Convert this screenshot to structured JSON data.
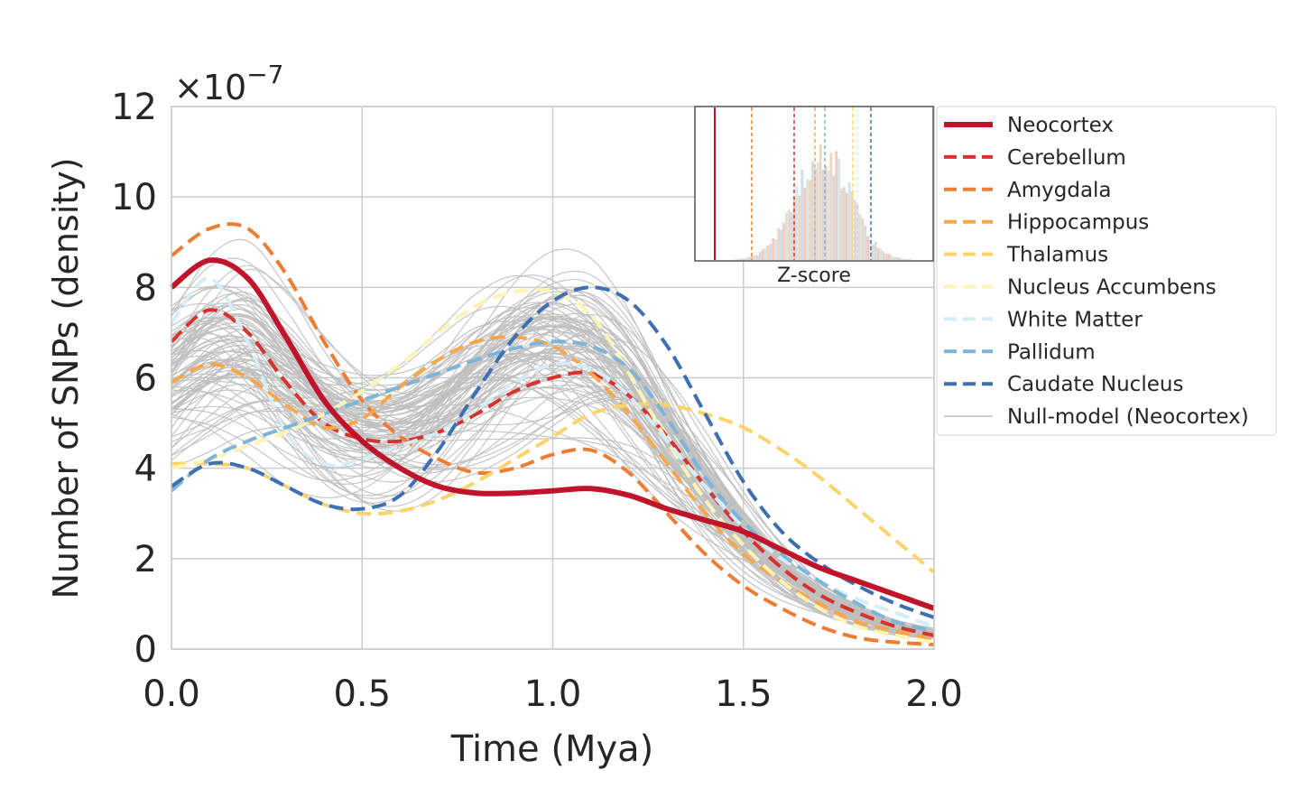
{
  "chart_data": {
    "type": "line",
    "xlabel": "Time (Mya)",
    "ylabel": "Number of SNPs (density)",
    "offset_label": "×10",
    "offset_exponent": "−7",
    "xlim": [
      0.0,
      2.0
    ],
    "ylim": [
      0,
      12
    ],
    "x_ticks": [
      0.0,
      0.5,
      1.0,
      1.5,
      2.0
    ],
    "x_tick_labels": [
      "0.0",
      "0.5",
      "1.0",
      "1.5",
      "2.0"
    ],
    "y_ticks": [
      0,
      2,
      4,
      6,
      8,
      10,
      12
    ],
    "y_tick_labels": [
      "0",
      "2",
      "4",
      "6",
      "8",
      "10",
      "12"
    ],
    "grid": true,
    "legend_position": "outside-right",
    "x": [
      0.0,
      0.1,
      0.2,
      0.3,
      0.4,
      0.5,
      0.6,
      0.7,
      0.8,
      0.9,
      1.0,
      1.1,
      1.2,
      1.3,
      1.4,
      1.5,
      1.6,
      1.7,
      1.8,
      1.9,
      2.0
    ],
    "series": [
      {
        "name": "Neocortex",
        "color": "#c0142b",
        "style": "solid",
        "width": 6,
        "values": [
          8.0,
          8.6,
          8.2,
          6.9,
          5.5,
          4.6,
          4.0,
          3.6,
          3.45,
          3.45,
          3.5,
          3.55,
          3.4,
          3.1,
          2.85,
          2.6,
          2.2,
          1.8,
          1.5,
          1.2,
          0.9
        ]
      },
      {
        "name": "Cerebellum",
        "color": "#d7322d",
        "style": "dashed",
        "width": 4,
        "values": [
          6.8,
          7.5,
          7.0,
          5.9,
          5.0,
          4.65,
          4.6,
          4.8,
          5.2,
          5.7,
          6.0,
          6.1,
          5.6,
          4.7,
          3.6,
          2.6,
          1.8,
          1.2,
          0.8,
          0.5,
          0.3
        ]
      },
      {
        "name": "Amygdala",
        "color": "#ee7d33",
        "style": "dashed",
        "width": 4,
        "values": [
          8.7,
          9.3,
          9.3,
          8.3,
          6.8,
          5.5,
          4.7,
          4.2,
          3.9,
          4.0,
          4.3,
          4.4,
          3.9,
          3.0,
          2.1,
          1.4,
          0.9,
          0.5,
          0.25,
          0.15,
          0.1
        ]
      },
      {
        "name": "Hippocampus",
        "color": "#f8a84a",
        "style": "dashed",
        "width": 4,
        "values": [
          5.9,
          6.3,
          6.0,
          5.4,
          4.9,
          5.1,
          5.8,
          6.4,
          6.8,
          6.9,
          6.7,
          6.1,
          5.2,
          4.1,
          3.0,
          2.1,
          1.5,
          1.0,
          0.6,
          0.4,
          0.2
        ]
      },
      {
        "name": "Thalamus",
        "color": "#fdd36b",
        "style": "dashed",
        "width": 4,
        "values": [
          4.1,
          4.1,
          4.0,
          3.6,
          3.2,
          3.0,
          3.05,
          3.3,
          3.7,
          4.2,
          4.7,
          5.2,
          5.4,
          5.4,
          5.2,
          4.9,
          4.4,
          3.8,
          3.1,
          2.4,
          1.7
        ]
      },
      {
        "name": "Nucleus Accumbens",
        "color": "#fdf4b5",
        "style": "dashed",
        "width": 4,
        "values": [
          4.0,
          4.2,
          4.5,
          4.8,
          5.2,
          5.7,
          6.3,
          7.0,
          7.6,
          7.9,
          7.9,
          7.4,
          6.1,
          4.6,
          3.3,
          2.3,
          1.5,
          0.9,
          0.5,
          0.3,
          0.15
        ]
      },
      {
        "name": "White Matter",
        "color": "#d7edf6",
        "style": "dashed",
        "width": 4,
        "values": [
          7.2,
          8.2,
          6.8,
          4.8,
          4.1,
          4.2,
          4.5,
          4.8,
          5.3,
          5.9,
          6.3,
          6.2,
          5.6,
          4.6,
          3.6,
          2.7,
          2.0,
          1.5,
          1.1,
          0.8,
          0.5
        ]
      },
      {
        "name": "Pallidum",
        "color": "#7eb4d8",
        "style": "dashed",
        "width": 4,
        "values": [
          3.5,
          4.2,
          4.6,
          4.9,
          5.2,
          5.5,
          5.8,
          6.1,
          6.4,
          6.65,
          6.8,
          6.7,
          6.2,
          5.1,
          3.8,
          2.8,
          2.1,
          1.5,
          1.0,
          0.6,
          0.4
        ]
      },
      {
        "name": "Caudate Nucleus",
        "color": "#3f6fb3",
        "style": "dashed",
        "width": 4,
        "values": [
          3.6,
          4.1,
          4.0,
          3.6,
          3.2,
          3.1,
          3.4,
          4.4,
          5.7,
          6.9,
          7.7,
          8.0,
          7.7,
          6.7,
          5.2,
          3.7,
          2.6,
          1.9,
          1.4,
          1.0,
          0.7
        ]
      }
    ],
    "null_model": {
      "name": "Null-model (Neocortex)",
      "color": "#bfbfbf",
      "center": [
        6.0,
        6.6,
        6.7,
        6.1,
        5.4,
        5.0,
        5.0,
        5.4,
        6.0,
        6.5,
        6.7,
        6.5,
        5.8,
        4.7,
        3.6,
        2.6,
        1.8,
        1.2,
        0.8,
        0.5,
        0.35
      ]
    },
    "inset": {
      "xlabel": "Z-score"
    },
    "legend": [
      "Neocortex",
      "Cerebellum",
      "Amygdala",
      "Hippocampus",
      "Thalamus",
      "Nucleus Accumbens",
      "White Matter",
      "Pallidum",
      "Caudate Nucleus",
      "Null-model (Neocortex)"
    ]
  }
}
